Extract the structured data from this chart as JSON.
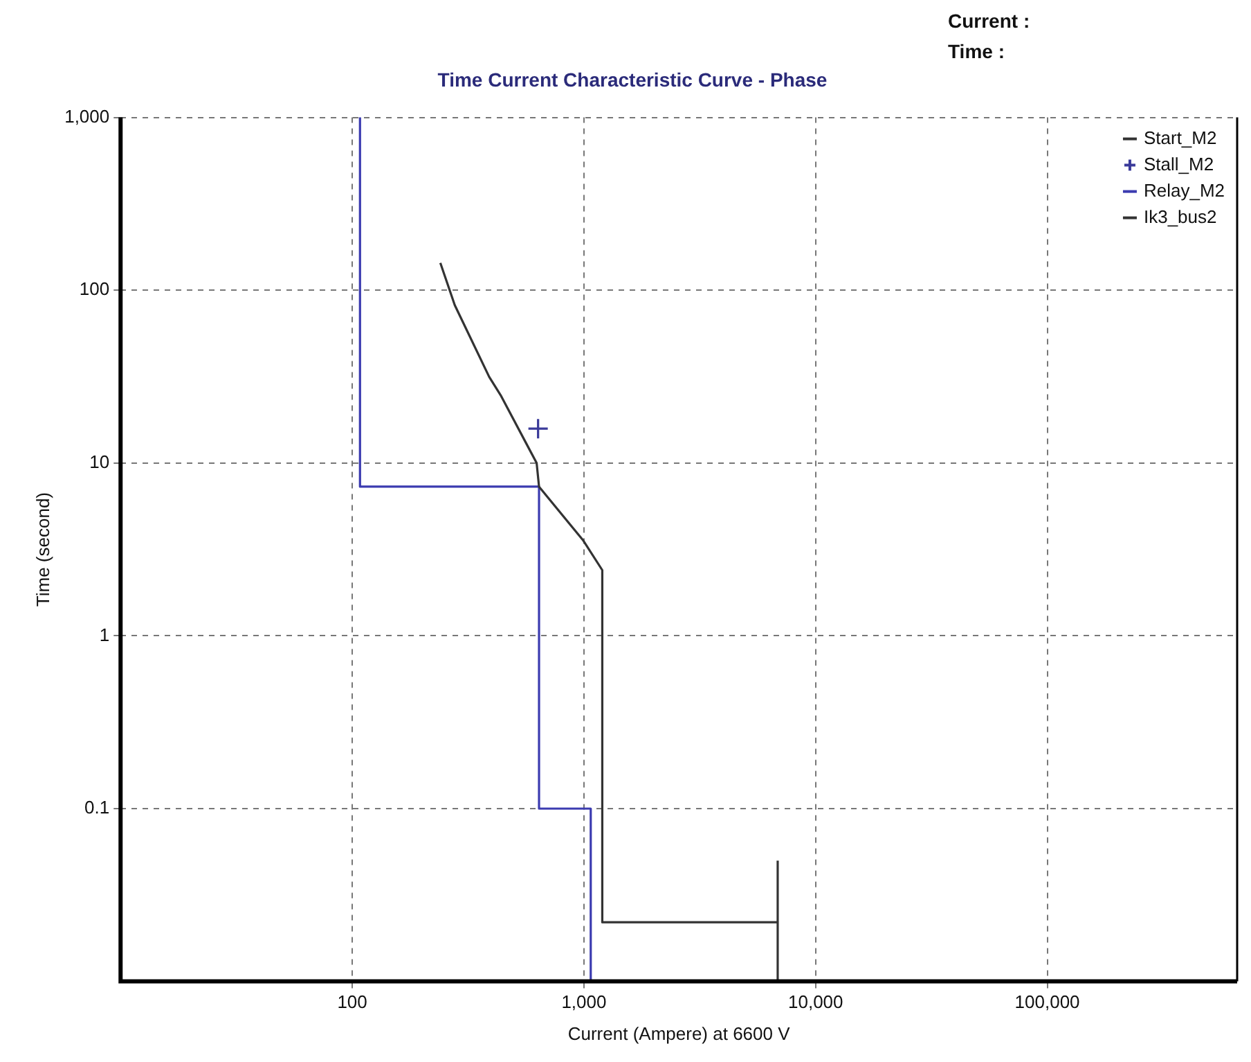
{
  "chart_data": {
    "type": "line",
    "title": "Time Current Characteristic Curve - Phase",
    "xlabel": "Current (Ampere) at 6600 V",
    "ylabel": "Time (second)",
    "annotations": [
      "Current :",
      "Time :"
    ],
    "log": "xy",
    "xlim": [
      10,
      660000
    ],
    "ylim": [
      0.01,
      1000
    ],
    "xticks": [
      100,
      {
        "value": 1000,
        "label": "1,000"
      },
      {
        "value": 10000,
        "label": "10,000"
      },
      {
        "value": 100000,
        "label": "100,000"
      }
    ],
    "yticks": [
      0.1,
      1,
      10,
      100,
      {
        "value": 1000,
        "label": "1,000"
      }
    ],
    "grid": true,
    "legend": "top right",
    "marker": "none",
    "line_style": "solid",
    "series": [
      {
        "name": "Start_M2",
        "color": "#333333",
        "x": [
          240,
          277,
          390,
          437,
          625,
          640,
          995,
          1200,
          1200,
          6860
        ],
        "values": [
          144,
          82,
          31.5,
          24.7,
          10,
          7.3,
          3.55,
          2.4,
          0.022,
          0.022
        ]
      },
      {
        "name": "Stall_M2",
        "type": "scatter",
        "marker": "cross",
        "color": "#3a3a9a",
        "x": [
          634
        ],
        "values": [
          15.8
        ]
      },
      {
        "name": "Relay_M2",
        "type": "step",
        "color": "#3b3bb0",
        "x": [
          108,
          108,
          640,
          640,
          1070,
          1070
        ],
        "values": [
          1000,
          7.3,
          7.3,
          0.1,
          0.1,
          0.01
        ]
      },
      {
        "name": "Ik3_bus2",
        "color": "#333333",
        "x": [
          6860,
          6860
        ],
        "values": [
          0.01,
          0.05
        ]
      }
    ]
  }
}
